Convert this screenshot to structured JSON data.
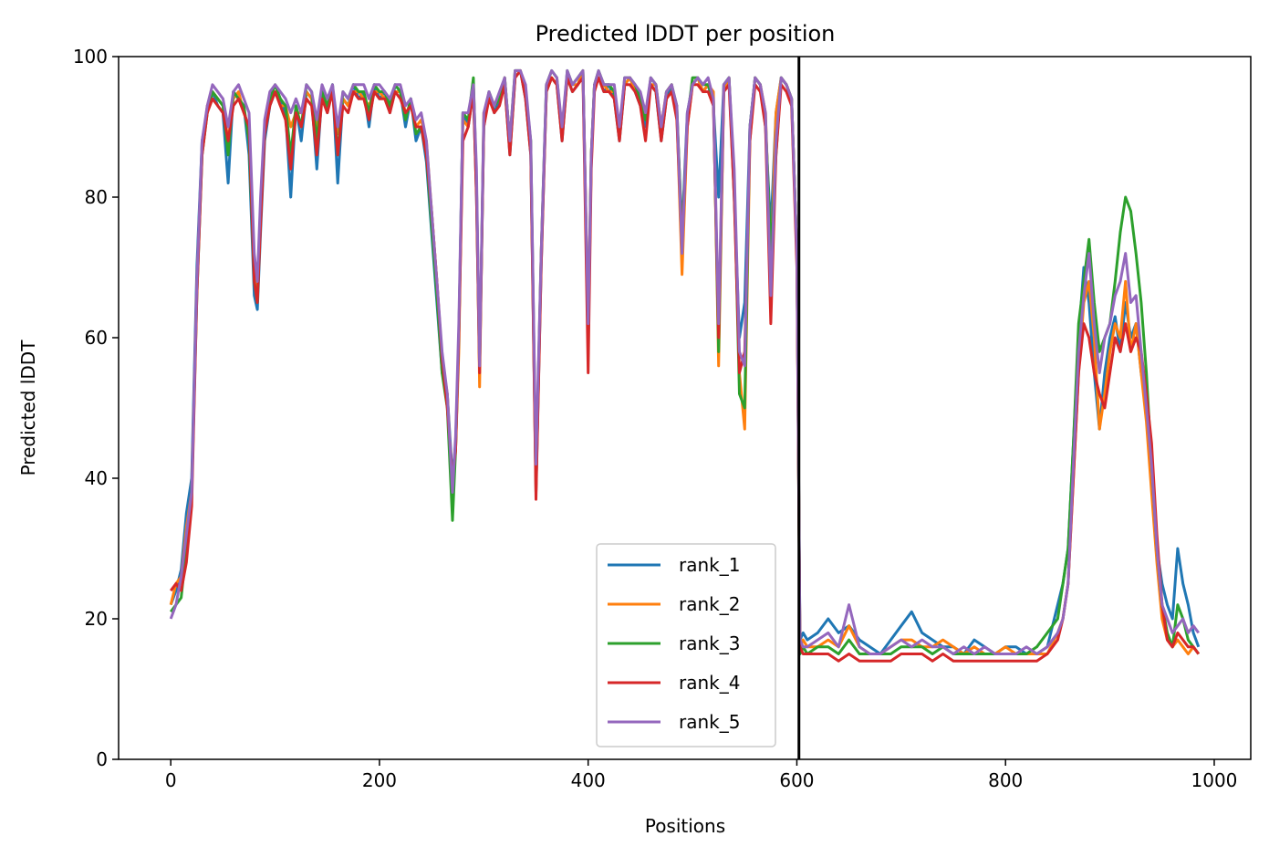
{
  "chart_data": {
    "type": "line",
    "title": "Predicted lDDT per position",
    "xlabel": "Positions",
    "ylabel": "Predicted lDDT",
    "xlim": [
      -50,
      1035
    ],
    "ylim": [
      0,
      100
    ],
    "xticks": [
      0,
      200,
      400,
      600,
      800,
      1000
    ],
    "yticks": [
      0,
      20,
      40,
      60,
      80,
      100
    ],
    "vline": 602,
    "legend_position": "lower-center",
    "series": [
      {
        "name": "rank_1",
        "color": "#1f77b4"
      },
      {
        "name": "rank_2",
        "color": "#ff7f0e"
      },
      {
        "name": "rank_3",
        "color": "#2ca02c"
      },
      {
        "name": "rank_4",
        "color": "#d62728"
      },
      {
        "name": "rank_5",
        "color": "#9467bd"
      }
    ],
    "x": [
      0,
      5,
      10,
      15,
      20,
      25,
      30,
      35,
      40,
      45,
      50,
      55,
      60,
      65,
      70,
      75,
      80,
      83,
      86,
      90,
      95,
      100,
      105,
      110,
      115,
      120,
      125,
      130,
      135,
      140,
      145,
      150,
      155,
      160,
      165,
      170,
      175,
      180,
      185,
      190,
      195,
      200,
      205,
      210,
      215,
      220,
      225,
      230,
      235,
      240,
      245,
      250,
      255,
      260,
      265,
      270,
      273,
      276,
      280,
      285,
      290,
      293,
      296,
      300,
      305,
      310,
      315,
      320,
      325,
      330,
      335,
      340,
      345,
      350,
      355,
      360,
      365,
      370,
      375,
      380,
      385,
      390,
      395,
      400,
      403,
      406,
      410,
      415,
      420,
      425,
      430,
      435,
      440,
      445,
      450,
      455,
      460,
      465,
      470,
      475,
      480,
      485,
      490,
      495,
      500,
      505,
      510,
      515,
      520,
      525,
      530,
      535,
      540,
      545,
      550,
      555,
      560,
      565,
      570,
      575,
      580,
      585,
      590,
      595,
      600,
      603,
      606,
      610,
      620,
      630,
      640,
      650,
      660,
      670,
      680,
      690,
      700,
      710,
      720,
      730,
      740,
      750,
      760,
      770,
      780,
      790,
      800,
      810,
      820,
      830,
      840,
      850,
      855,
      860,
      865,
      870,
      875,
      880,
      885,
      890,
      895,
      900,
      905,
      910,
      915,
      920,
      925,
      930,
      935,
      940,
      945,
      950,
      955,
      960,
      965,
      970,
      975,
      980,
      985
    ],
    "values": {
      "rank_1": [
        22,
        24,
        27,
        35,
        40,
        70,
        88,
        92,
        95,
        93,
        92,
        82,
        95,
        94,
        93,
        86,
        66,
        64,
        75,
        88,
        93,
        95,
        94,
        92,
        80,
        93,
        88,
        95,
        94,
        84,
        95,
        92,
        96,
        82,
        94,
        93,
        96,
        94,
        95,
        90,
        96,
        94,
        95,
        92,
        96,
        95,
        90,
        94,
        88,
        90,
        85,
        75,
        65,
        55,
        52,
        40,
        45,
        60,
        92,
        90,
        95,
        80,
        55,
        90,
        95,
        92,
        94,
        96,
        86,
        97,
        98,
        94,
        86,
        38,
        70,
        95,
        97,
        96,
        88,
        97,
        95,
        96,
        98,
        60,
        85,
        96,
        97,
        95,
        96,
        94,
        88,
        96,
        97,
        95,
        93,
        90,
        96,
        95,
        88,
        94,
        96,
        92,
        75,
        92,
        96,
        97,
        95,
        96,
        93,
        80,
        96,
        97,
        80,
        60,
        65,
        90,
        97,
        96,
        90,
        75,
        92,
        97,
        96,
        94,
        72,
        17,
        18,
        17,
        18,
        20,
        18,
        19,
        17,
        16,
        15,
        17,
        19,
        21,
        18,
        17,
        16,
        16,
        15,
        17,
        16,
        15,
        16,
        16,
        15,
        15,
        16,
        22,
        25,
        30,
        45,
        60,
        70,
        65,
        55,
        47,
        55,
        60,
        63,
        58,
        65,
        60,
        62,
        55,
        50,
        40,
        30,
        25,
        22,
        20,
        30,
        25,
        22,
        18,
        16
      ],
      "rank_2": [
        22,
        25,
        26,
        33,
        38,
        68,
        87,
        93,
        95,
        94,
        93,
        88,
        94,
        95,
        92,
        90,
        70,
        66,
        78,
        90,
        94,
        95,
        93,
        93,
        90,
        92,
        92,
        95,
        94,
        90,
        94,
        93,
        95,
        89,
        94,
        93,
        95,
        95,
        94,
        93,
        95,
        95,
        94,
        93,
        95,
        95,
        92,
        93,
        90,
        91,
        88,
        78,
        68,
        57,
        52,
        38,
        44,
        58,
        91,
        90,
        96,
        82,
        53,
        92,
        94,
        93,
        94,
        97,
        88,
        97,
        98,
        95,
        87,
        38,
        72,
        95,
        97,
        96,
        90,
        97,
        96,
        96,
        98,
        62,
        86,
        96,
        97,
        96,
        95,
        95,
        90,
        96,
        97,
        95,
        94,
        92,
        96,
        96,
        90,
        95,
        96,
        92,
        69,
        90,
        96,
        97,
        95,
        96,
        95,
        56,
        95,
        97,
        82,
        55,
        47,
        88,
        97,
        96,
        92,
        70,
        92,
        97,
        96,
        94,
        72,
        16,
        17,
        16,
        16,
        17,
        16,
        19,
        16,
        15,
        15,
        16,
        17,
        17,
        16,
        16,
        17,
        16,
        15,
        16,
        15,
        15,
        16,
        15,
        15,
        15,
        15,
        18,
        20,
        25,
        40,
        55,
        65,
        68,
        60,
        47,
        52,
        58,
        62,
        60,
        68,
        58,
        62,
        55,
        48,
        38,
        28,
        20,
        17,
        16,
        17,
        16,
        15,
        16,
        15
      ],
      "rank_3": [
        21,
        22,
        23,
        30,
        38,
        66,
        86,
        92,
        95,
        94,
        93,
        86,
        95,
        94,
        93,
        88,
        68,
        65,
        77,
        89,
        94,
        96,
        94,
        93,
        86,
        93,
        90,
        96,
        95,
        88,
        95,
        93,
        96,
        86,
        95,
        94,
        96,
        95,
        95,
        92,
        96,
        95,
        95,
        93,
        96,
        95,
        91,
        94,
        89,
        90,
        86,
        76,
        66,
        55,
        50,
        34,
        44,
        60,
        92,
        91,
        97,
        82,
        56,
        91,
        95,
        93,
        94,
        97,
        88,
        98,
        98,
        95,
        88,
        40,
        72,
        96,
        98,
        97,
        89,
        98,
        96,
        97,
        98,
        60,
        86,
        96,
        98,
        96,
        96,
        95,
        89,
        97,
        97,
        96,
        94,
        91,
        97,
        96,
        89,
        95,
        96,
        93,
        74,
        91,
        97,
        97,
        96,
        96,
        94,
        58,
        96,
        97,
        82,
        52,
        50,
        90,
        97,
        96,
        91,
        72,
        86,
        97,
        96,
        94,
        72,
        15,
        16,
        15,
        16,
        16,
        15,
        17,
        15,
        15,
        15,
        15,
        16,
        16,
        16,
        15,
        16,
        15,
        15,
        15,
        15,
        15,
        15,
        15,
        15,
        16,
        18,
        20,
        25,
        30,
        45,
        62,
        68,
        74,
        65,
        58,
        60,
        62,
        68,
        75,
        80,
        78,
        72,
        65,
        55,
        42,
        30,
        22,
        18,
        16,
        22,
        20,
        17,
        16,
        15
      ],
      "rank_4": [
        24,
        25,
        24,
        28,
        36,
        66,
        86,
        92,
        94,
        93,
        92,
        88,
        93,
        94,
        92,
        90,
        68,
        65,
        76,
        89,
        93,
        95,
        93,
        91,
        84,
        92,
        90,
        94,
        93,
        86,
        94,
        92,
        95,
        86,
        93,
        92,
        95,
        94,
        94,
        91,
        95,
        94,
        94,
        92,
        95,
        94,
        92,
        93,
        90,
        90,
        86,
        78,
        68,
        57,
        50,
        40,
        44,
        60,
        88,
        90,
        95,
        80,
        55,
        90,
        94,
        92,
        93,
        96,
        86,
        97,
        98,
        94,
        86,
        37,
        70,
        95,
        97,
        96,
        88,
        97,
        95,
        96,
        97,
        55,
        84,
        95,
        97,
        95,
        95,
        94,
        88,
        96,
        96,
        95,
        93,
        88,
        96,
        95,
        88,
        94,
        95,
        91,
        73,
        90,
        96,
        96,
        95,
        95,
        93,
        60,
        95,
        96,
        80,
        55,
        58,
        88,
        96,
        95,
        90,
        62,
        86,
        96,
        95,
        93,
        70,
        16,
        15,
        15,
        15,
        15,
        14,
        15,
        14,
        14,
        14,
        14,
        15,
        15,
        15,
        14,
        15,
        14,
        14,
        14,
        14,
        14,
        14,
        14,
        14,
        14,
        15,
        17,
        20,
        25,
        40,
        55,
        62,
        60,
        55,
        52,
        50,
        55,
        60,
        58,
        62,
        58,
        60,
        58,
        52,
        45,
        32,
        22,
        17,
        16,
        18,
        17,
        16,
        16,
        15
      ],
      "rank_5": [
        20,
        22,
        26,
        32,
        38,
        68,
        88,
        93,
        96,
        95,
        94,
        90,
        95,
        96,
        94,
        92,
        72,
        68,
        80,
        91,
        95,
        96,
        95,
        94,
        92,
        94,
        92,
        96,
        95,
        91,
        96,
        94,
        96,
        90,
        95,
        94,
        96,
        96,
        96,
        94,
        96,
        96,
        95,
        94,
        96,
        96,
        93,
        94,
        91,
        92,
        88,
        78,
        68,
        58,
        52,
        38,
        46,
        62,
        92,
        92,
        96,
        84,
        56,
        92,
        95,
        93,
        95,
        97,
        88,
        98,
        98,
        96,
        88,
        42,
        72,
        96,
        98,
        97,
        90,
        98,
        96,
        97,
        98,
        62,
        86,
        96,
        98,
        96,
        96,
        96,
        90,
        97,
        97,
        96,
        95,
        92,
        97,
        96,
        90,
        95,
        96,
        93,
        72,
        92,
        96,
        97,
        96,
        97,
        94,
        62,
        96,
        97,
        84,
        58,
        56,
        90,
        97,
        96,
        92,
        66,
        88,
        97,
        96,
        94,
        72,
        17,
        16,
        16,
        17,
        18,
        16,
        22,
        16,
        15,
        15,
        16,
        17,
        16,
        17,
        16,
        16,
        15,
        16,
        15,
        16,
        15,
        15,
        15,
        16,
        15,
        16,
        18,
        20,
        25,
        42,
        58,
        66,
        72,
        62,
        55,
        60,
        62,
        66,
        68,
        72,
        65,
        66,
        58,
        50,
        42,
        30,
        22,
        20,
        18,
        19,
        20,
        18,
        19,
        18
      ]
    }
  }
}
